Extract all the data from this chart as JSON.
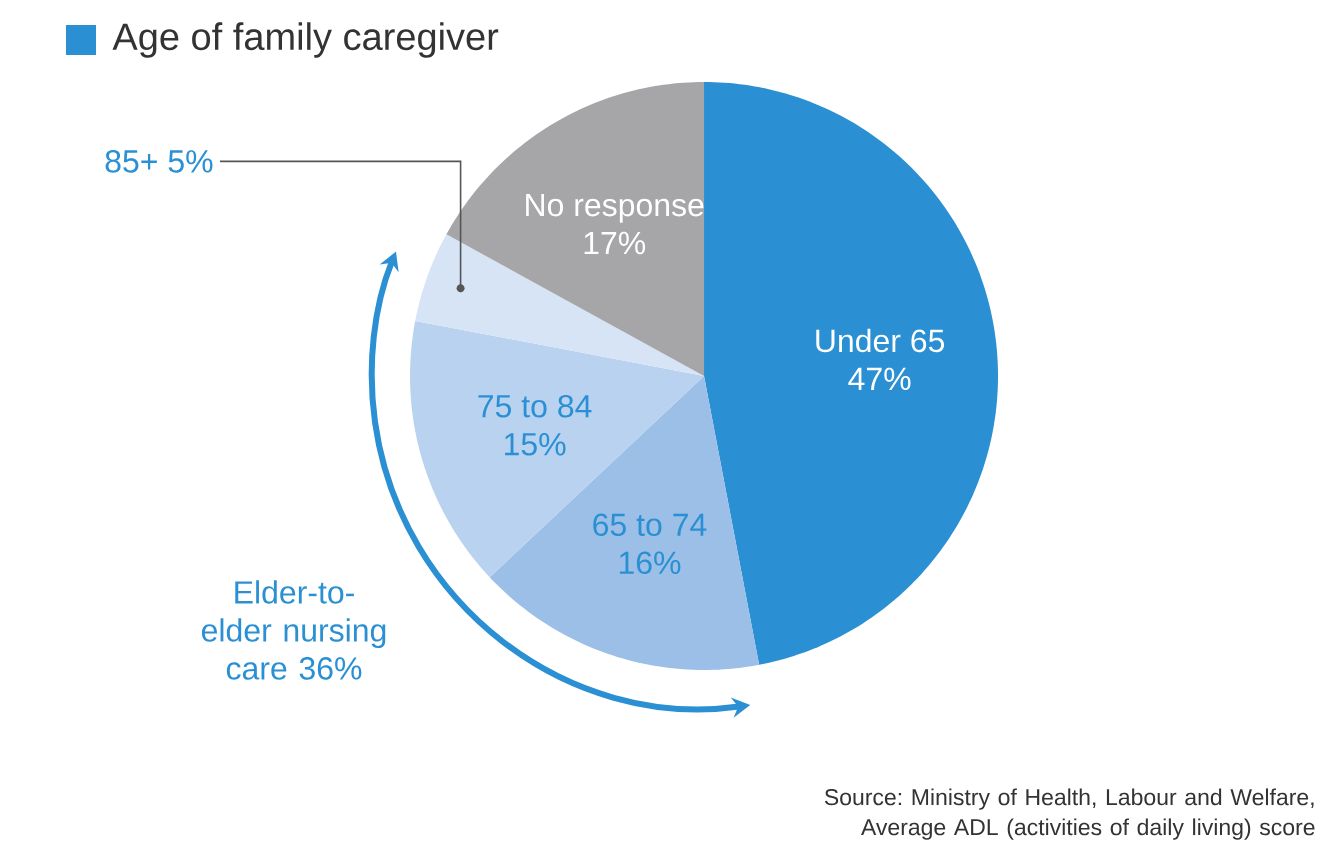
{
  "chart_data": {
    "type": "pie",
    "title": "Age of family caregiver",
    "categories": [
      "Under 65",
      "65 to 74",
      "75 to 84",
      "85+",
      "No response"
    ],
    "values": [
      47,
      16,
      15,
      5,
      17
    ],
    "colors": [
      "#2b90d3",
      "#9bbfe6",
      "#b8d2ef",
      "#d6e4f5",
      "#a6a6a9"
    ],
    "value_labels": [
      "47%",
      "16%",
      "15%",
      "5%",
      "17%"
    ],
    "annotations": [
      "Elder-to-elder nursing care 36%",
      "Source: Ministry of Health, Labour and Welfare, Average ADL (activities of daily living) score"
    ]
  }
}
